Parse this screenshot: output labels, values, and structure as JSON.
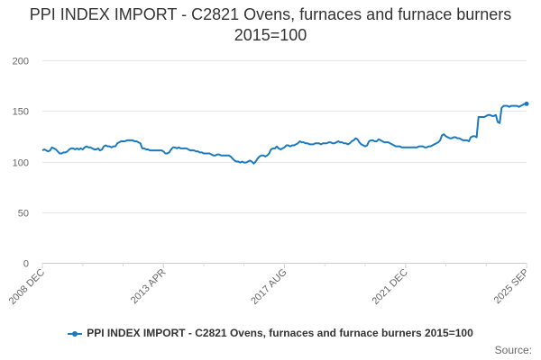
{
  "chart_data": {
    "type": "line",
    "title": "PPI INDEX IMPORT - C2821 Ovens, furnaces and furnace burners 2015=100",
    "xlabel": "",
    "ylabel": "",
    "ylim": [
      0,
      200
    ],
    "yticks": [
      0,
      50,
      100,
      150,
      200
    ],
    "grid": true,
    "legend_position": "bottom",
    "x_start": "2008 DEC",
    "x_end": "2025 SEP",
    "x_tick_labels": [
      "2008 DEC",
      "2013 APR",
      "2017 AUG",
      "2021 DEC",
      "2025 SEP"
    ],
    "series": [
      {
        "name": "PPI INDEX IMPORT - C2821 Ovens, furnaces and furnace burners 2015=100",
        "color": "#1a7abf",
        "values": [
          111,
          112,
          111,
          110,
          111,
          114,
          113,
          112,
          110,
          108,
          108,
          109,
          109,
          110,
          112,
          113,
          113,
          112,
          113,
          112,
          113,
          112,
          114,
          115,
          114,
          114,
          113,
          112,
          112,
          113,
          111,
          112,
          115,
          116,
          115,
          115,
          114,
          115,
          115,
          118,
          119,
          120,
          120,
          120,
          121,
          121,
          121,
          121,
          120,
          120,
          119,
          118,
          113,
          113,
          112,
          112,
          111,
          111,
          111,
          111,
          111,
          111,
          111,
          110,
          108,
          108,
          109,
          112,
          114,
          114,
          113,
          114,
          113,
          113,
          113,
          113,
          112,
          111,
          111,
          111,
          110,
          110,
          109,
          109,
          108,
          108,
          108,
          108,
          107,
          106,
          106,
          107,
          107,
          106,
          106,
          106,
          106,
          106,
          105,
          103,
          101,
          100,
          100,
          99,
          100,
          99,
          99,
          100,
          101,
          100,
          98,
          100,
          103,
          105,
          106,
          106,
          105,
          106,
          108,
          112,
          113,
          113,
          115,
          113,
          112,
          113,
          114,
          116,
          116,
          115,
          116,
          116,
          117,
          118,
          120,
          119,
          119,
          118,
          118,
          117,
          117,
          117,
          118,
          118,
          118,
          117,
          118,
          118,
          118,
          119,
          119,
          118,
          118,
          119,
          120,
          119,
          119,
          118,
          118,
          117,
          118,
          120,
          121,
          123,
          122,
          119,
          117,
          116,
          115,
          116,
          120,
          121,
          121,
          120,
          120,
          122,
          121,
          120,
          119,
          119,
          119,
          118,
          117,
          116,
          115,
          115,
          115,
          114,
          114,
          114,
          114,
          114,
          114,
          114,
          114,
          114,
          115,
          115,
          115,
          114,
          114,
          115,
          115,
          116,
          117,
          118,
          119,
          121,
          126,
          127,
          125,
          124,
          123,
          123,
          124,
          124,
          123,
          123,
          122,
          121,
          121,
          121,
          120,
          124,
          125,
          125,
          124,
          144,
          144,
          144,
          144,
          145,
          146,
          146,
          145,
          145,
          146,
          139,
          138,
          153,
          155,
          155,
          155,
          154,
          155,
          155,
          155,
          155,
          154,
          155,
          156,
          157,
          157
        ]
      }
    ]
  }
}
